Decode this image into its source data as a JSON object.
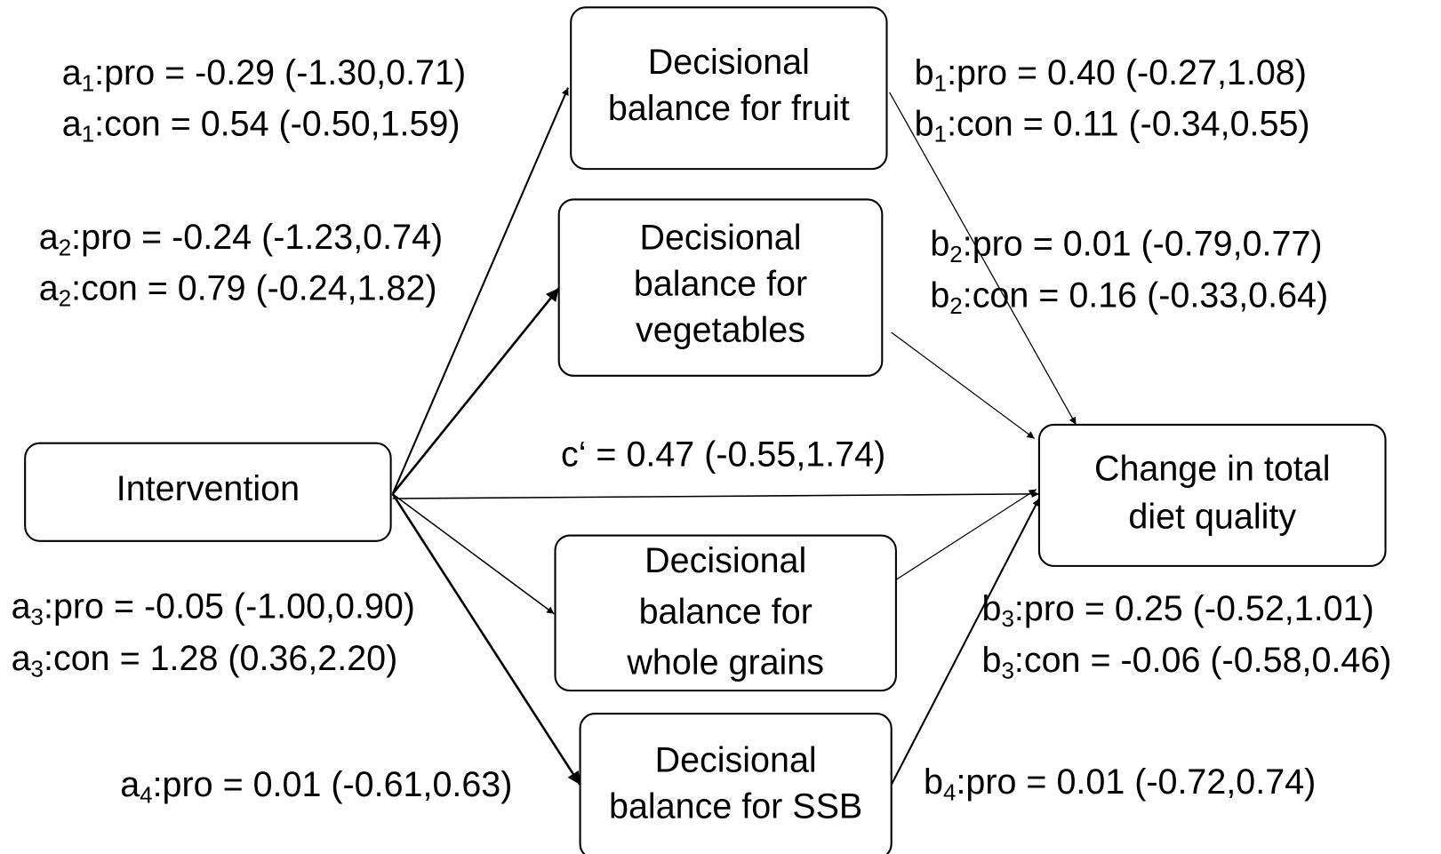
{
  "nodes": [
    {
      "lines": [
        "Decisional",
        "balance for fruit"
      ]
    },
    {
      "lines": [
        "Decisional",
        "balance for",
        "vegetables"
      ]
    },
    {
      "lines": [
        "Intervention"
      ]
    },
    {
      "lines": [
        "Change in total",
        "diet quality"
      ]
    },
    {
      "lines": [
        "Decisional",
        "balance for",
        "whole grains"
      ]
    },
    {
      "lines": [
        "Decisional",
        "balance for SSB"
      ]
    }
  ],
  "edges": [
    {
      "labels": [
        {
          "symbol": "a",
          "sub": "1",
          "text": ":pro = -0.29 (-1.30,0.71)"
        },
        {
          "symbol": "a",
          "sub": "1",
          "text": ":con = 0.54 (-0.50,1.59)"
        }
      ]
    },
    {
      "labels": [
        {
          "symbol": "a",
          "sub": "2",
          "text": ":pro = -0.24 (-1.23,0.74)"
        },
        {
          "symbol": "a",
          "sub": "2",
          "text": ":con = 0.79 (-0.24,1.82)"
        }
      ]
    },
    {
      "labels": [
        {
          "symbol": "a",
          "sub": "3",
          "text": ":pro = -0.05 (-1.00,0.90)"
        },
        {
          "symbol": "a",
          "sub": "3",
          "text": ":con = 1.28 (0.36,2.20)"
        }
      ]
    },
    {
      "labels": [
        {
          "symbol": "a",
          "sub": "4",
          "text": ":pro = 0.01 (-0.61,0.63)"
        }
      ]
    },
    {
      "labels": [
        {
          "text": "c‘ = 0.47 (-0.55,1.74)"
        }
      ]
    },
    {
      "labels": [
        {
          "symbol": "b",
          "sub": "1",
          "text": ":pro = 0.40 (-0.27,1.08)"
        },
        {
          "symbol": "b",
          "sub": "1",
          "text": ":con = 0.11 (-0.34,0.55)"
        }
      ]
    },
    {
      "labels": [
        {
          "symbol": "b",
          "sub": "2",
          "text": ":pro = 0.01 (-0.79,0.77)"
        },
        {
          "symbol": "b",
          "sub": "2",
          "text": ":con = 0.16 (-0.33,0.64)"
        }
      ]
    },
    {
      "labels": [
        {
          "symbol": "b",
          "sub": "3",
          "text": ":pro = 0.25 (-0.52,1.01)"
        },
        {
          "symbol": "b",
          "sub": "3",
          "text": ":con = -0.06 (-0.58,0.46)"
        }
      ]
    },
    {
      "labels": [
        {
          "symbol": "b",
          "sub": "4",
          "text": ":pro = 0.01 (-0.72,0.74)"
        }
      ]
    }
  ]
}
